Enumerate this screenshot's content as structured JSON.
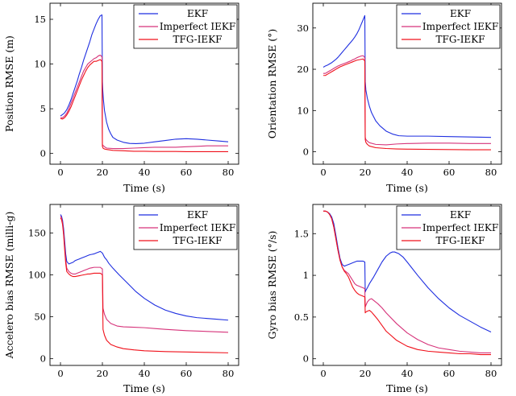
{
  "series_colors": {
    "EKF": "#1f2fe0",
    "Imperfect IEKF": "#d6337a",
    "TFG-IEKF": "#f0101a"
  },
  "chart_data": [
    {
      "type": "line",
      "id": "position",
      "xlabel": "Time (s)",
      "ylabel": "Position RMSE (m)",
      "xlim": [
        -5,
        85
      ],
      "ylim": [
        -1.2,
        16.8
      ],
      "xticks": [
        0,
        20,
        40,
        60,
        80
      ],
      "yticks": [
        0,
        5,
        10,
        15
      ],
      "legend": [
        "EKF",
        "Imperfect IEKF",
        "TFG-IEKF"
      ],
      "legend_position": "top-right",
      "series": [
        {
          "name": "EKF",
          "x": [
            0,
            1,
            2,
            3,
            4,
            5,
            6,
            7,
            8,
            9,
            10,
            11,
            12,
            13,
            14,
            15,
            16,
            17,
            18,
            19,
            19.8,
            20,
            20.2,
            20.5,
            21,
            22,
            23,
            24,
            25,
            27,
            30,
            33,
            36,
            40,
            45,
            50,
            55,
            60,
            65,
            70,
            75,
            80
          ],
          "y": [
            4.2,
            4.35,
            4.55,
            4.9,
            5.4,
            6.0,
            6.7,
            7.4,
            8.1,
            8.9,
            9.6,
            10.4,
            11.1,
            11.8,
            12.5,
            13.3,
            13.9,
            14.5,
            15.0,
            15.4,
            15.5,
            8.0,
            7.0,
            6.0,
            4.8,
            3.5,
            2.7,
            2.2,
            1.8,
            1.5,
            1.25,
            1.12,
            1.1,
            1.15,
            1.3,
            1.45,
            1.6,
            1.65,
            1.6,
            1.5,
            1.4,
            1.3
          ]
        },
        {
          "name": "Imperfect IEKF",
          "x": [
            0,
            1,
            2,
            3,
            4,
            5,
            6,
            7,
            8,
            9,
            10,
            11,
            12,
            13,
            14,
            15,
            16,
            17,
            18,
            19,
            19.8,
            20,
            20.3,
            21,
            22,
            25,
            30,
            35,
            40,
            45,
            50,
            55,
            60,
            65,
            70,
            75,
            80
          ],
          "y": [
            4.0,
            4.0,
            4.2,
            4.5,
            5.0,
            5.6,
            6.2,
            6.8,
            7.4,
            8.0,
            8.6,
            9.2,
            9.6,
            10.0,
            10.2,
            10.4,
            10.6,
            10.7,
            10.9,
            11.0,
            10.8,
            1.0,
            0.9,
            0.75,
            0.6,
            0.55,
            0.55,
            0.6,
            0.65,
            0.7,
            0.7,
            0.7,
            0.75,
            0.8,
            0.85,
            0.85,
            0.85
          ]
        },
        {
          "name": "TFG-IEKF",
          "x": [
            0,
            1,
            2,
            3,
            4,
            5,
            6,
            7,
            8,
            9,
            10,
            11,
            12,
            13,
            14,
            15,
            16,
            17,
            18,
            19,
            19.8,
            20,
            20.3,
            21,
            22,
            25,
            30,
            35,
            40,
            45,
            50,
            55,
            60,
            65,
            70,
            75,
            80
          ],
          "y": [
            3.9,
            3.85,
            4.0,
            4.3,
            4.7,
            5.2,
            5.8,
            6.4,
            7.0,
            7.6,
            8.2,
            8.7,
            9.2,
            9.6,
            9.9,
            10.1,
            10.3,
            10.3,
            10.4,
            10.5,
            10.3,
            0.8,
            0.6,
            0.5,
            0.45,
            0.35,
            0.3,
            0.25,
            0.25,
            0.22,
            0.22,
            0.22,
            0.2,
            0.2,
            0.2,
            0.2,
            0.2
          ]
        }
      ]
    },
    {
      "type": "line",
      "id": "orientation",
      "xlabel": "Time (s)",
      "ylabel": "Orientation RMSE (°)",
      "xlim": [
        -5,
        85
      ],
      "ylim": [
        -3,
        36
      ],
      "xticks": [
        0,
        20,
        40,
        60,
        80
      ],
      "yticks": [
        0,
        10,
        20,
        30
      ],
      "legend": [
        "EKF",
        "Imperfect IEKF",
        "TFG-IEKF"
      ],
      "legend_position": "top-right",
      "series": [
        {
          "name": "EKF",
          "x": [
            0,
            1,
            2,
            3,
            4,
            5,
            6,
            7,
            8,
            9,
            10,
            11,
            12,
            13,
            14,
            15,
            16,
            17,
            18,
            19,
            19.8,
            20,
            20.3,
            21,
            22,
            23,
            24,
            25,
            27,
            30,
            33,
            36,
            40,
            45,
            50,
            60,
            70,
            80
          ],
          "y": [
            20.5,
            20.8,
            21.0,
            21.3,
            21.6,
            22.0,
            22.4,
            22.9,
            23.5,
            24.1,
            24.7,
            25.3,
            25.9,
            26.5,
            27.1,
            27.8,
            28.6,
            29.6,
            30.8,
            32.0,
            33.0,
            17.0,
            15.0,
            13.0,
            11.0,
            9.5,
            8.5,
            7.5,
            6.3,
            5.0,
            4.3,
            3.9,
            3.8,
            3.8,
            3.8,
            3.7,
            3.6,
            3.5
          ]
        },
        {
          "name": "Imperfect IEKF",
          "x": [
            0,
            1,
            2,
            3,
            4,
            5,
            6,
            7,
            8,
            9,
            10,
            11,
            12,
            13,
            14,
            15,
            16,
            17,
            18,
            19,
            19.8,
            20,
            20.3,
            21,
            22,
            25,
            30,
            35,
            40,
            50,
            60,
            70,
            80
          ],
          "y": [
            19.0,
            19.0,
            19.3,
            19.6,
            19.9,
            20.2,
            20.5,
            20.8,
            21.0,
            21.2,
            21.4,
            21.6,
            21.8,
            22.0,
            22.3,
            22.5,
            22.8,
            23.0,
            23.2,
            23.3,
            22.8,
            3.5,
            3.0,
            2.6,
            2.2,
            1.8,
            1.7,
            1.9,
            2.0,
            2.1,
            2.1,
            2.0,
            2.0
          ]
        },
        {
          "name": "TFG-IEKF",
          "x": [
            0,
            1,
            2,
            3,
            4,
            5,
            6,
            7,
            8,
            9,
            10,
            11,
            12,
            13,
            14,
            15,
            16,
            17,
            18,
            19,
            19.8,
            20,
            20.3,
            21,
            22,
            25,
            30,
            35,
            40,
            50,
            60,
            70,
            80
          ],
          "y": [
            18.5,
            18.5,
            18.8,
            19.1,
            19.4,
            19.7,
            20.0,
            20.3,
            20.6,
            20.8,
            21.0,
            21.2,
            21.4,
            21.6,
            21.8,
            22.0,
            22.2,
            22.3,
            22.4,
            22.5,
            22.0,
            3.0,
            2.3,
            1.8,
            1.4,
            1.0,
            0.8,
            0.7,
            0.65,
            0.6,
            0.55,
            0.5,
            0.5
          ]
        }
      ]
    },
    {
      "type": "line",
      "id": "accelero_bias",
      "xlabel": "Time (s)",
      "ylabel": "Accelero bias RMSE (milli-g)",
      "xlim": [
        -5,
        85
      ],
      "ylim": [
        -8,
        184
      ],
      "xticks": [
        0,
        20,
        40,
        60,
        80
      ],
      "yticks": [
        0,
        50,
        100,
        150
      ],
      "legend": [
        "EKF",
        "Imperfect IEKF",
        "TFG-IEKF"
      ],
      "legend_position": "top-right",
      "series": [
        {
          "name": "EKF",
          "x": [
            0,
            0.5,
            1,
            1.5,
            2,
            2.5,
            3,
            4,
            5,
            6,
            7,
            8,
            9,
            10,
            11,
            12,
            13,
            14,
            15,
            16,
            17,
            18,
            19,
            19.5,
            20,
            21,
            22,
            23,
            25,
            28,
            32,
            36,
            40,
            45,
            50,
            55,
            60,
            65,
            70,
            75,
            80
          ],
          "y": [
            172,
            170,
            165,
            155,
            140,
            125,
            116,
            113,
            114,
            115,
            117,
            118,
            119,
            120,
            121,
            122,
            123,
            124,
            124.5,
            125,
            126,
            127,
            128,
            127,
            126,
            121,
            118,
            114,
            108,
            100,
            90,
            80,
            72,
            64,
            58,
            54,
            51,
            49,
            48,
            47,
            46
          ]
        },
        {
          "name": "Imperfect IEKF",
          "x": [
            0,
            0.5,
            1,
            1.5,
            2,
            2.5,
            3,
            4,
            5,
            6,
            7,
            8,
            9,
            10,
            11,
            12,
            13,
            14,
            15,
            16,
            17,
            18,
            19,
            19.5,
            20,
            20.3,
            21,
            22,
            24,
            27,
            30,
            35,
            40,
            45,
            50,
            60,
            70,
            80
          ],
          "y": [
            170,
            168,
            162,
            150,
            134,
            118,
            108,
            104,
            102,
            101,
            101,
            102,
            103,
            104,
            105,
            106,
            107,
            108,
            108.5,
            109,
            109,
            109,
            109,
            108,
            107,
            60,
            53,
            47,
            42,
            39,
            38,
            37.5,
            37,
            36,
            35,
            33.5,
            32.5,
            31.5
          ]
        },
        {
          "name": "TFG-IEKF",
          "x": [
            0,
            0.5,
            1,
            1.5,
            2,
            2.5,
            3,
            4,
            5,
            6,
            7,
            8,
            9,
            10,
            11,
            12,
            13,
            14,
            15,
            16,
            17,
            18,
            19,
            19.5,
            20,
            20.3,
            21,
            22,
            24,
            27,
            30,
            35,
            40,
            45,
            50,
            60,
            70,
            80
          ],
          "y": [
            168,
            166,
            160,
            148,
            130,
            114,
            104,
            101,
            99,
            98,
            98,
            98.5,
            99,
            99.5,
            100,
            100.5,
            101,
            101,
            101.5,
            102,
            102,
            102,
            102,
            101,
            100,
            35,
            28,
            22,
            17,
            14,
            12,
            10.5,
            9.5,
            9,
            8.5,
            8,
            7.5,
            7
          ]
        }
      ]
    },
    {
      "type": "line",
      "id": "gyro_bias",
      "xlabel": "Time (s)",
      "ylabel": "Gyro bias RMSE (°/s)",
      "xlim": [
        -5,
        85
      ],
      "ylim": [
        -0.08,
        1.85
      ],
      "xticks": [
        0,
        20,
        40,
        60,
        80
      ],
      "yticks": [
        0,
        0.5,
        1,
        1.5
      ],
      "legend": [
        "EKF",
        "Imperfect IEKF",
        "TFG-IEKF"
      ],
      "legend_position": "top-right",
      "series": [
        {
          "name": "EKF",
          "x": [
            0,
            1,
            2,
            3,
            4,
            5,
            6,
            7,
            8,
            9,
            10,
            11,
            12,
            13,
            14,
            15,
            16,
            17,
            18,
            19,
            19.8,
            20,
            20.3,
            21,
            22,
            24,
            26,
            28,
            30,
            32,
            33,
            34,
            36,
            38,
            40,
            45,
            50,
            55,
            60,
            65,
            70,
            75,
            80
          ],
          "y": [
            1.77,
            1.77,
            1.76,
            1.74,
            1.7,
            1.62,
            1.48,
            1.33,
            1.2,
            1.13,
            1.11,
            1.12,
            1.13,
            1.14,
            1.15,
            1.16,
            1.17,
            1.17,
            1.17,
            1.17,
            1.16,
            0.8,
            0.82,
            0.85,
            0.9,
            0.98,
            1.07,
            1.16,
            1.23,
            1.27,
            1.28,
            1.28,
            1.26,
            1.22,
            1.16,
            1.0,
            0.85,
            0.72,
            0.61,
            0.52,
            0.45,
            0.38,
            0.32
          ]
        },
        {
          "name": "Imperfect IEKF",
          "x": [
            0,
            1,
            2,
            3,
            4,
            5,
            6,
            7,
            8,
            9,
            10,
            11,
            12,
            13,
            14,
            15,
            16,
            17,
            18,
            19,
            19.8,
            20,
            20.3,
            21,
            22,
            23,
            24,
            26,
            28,
            30,
            35,
            40,
            45,
            50,
            55,
            60,
            65,
            70,
            75,
            80
          ],
          "y": [
            1.77,
            1.77,
            1.76,
            1.73,
            1.68,
            1.58,
            1.44,
            1.3,
            1.18,
            1.1,
            1.06,
            1.04,
            1.02,
            0.98,
            0.94,
            0.9,
            0.88,
            0.87,
            0.86,
            0.85,
            0.84,
            0.62,
            0.64,
            0.68,
            0.71,
            0.72,
            0.7,
            0.66,
            0.61,
            0.55,
            0.42,
            0.31,
            0.23,
            0.17,
            0.13,
            0.11,
            0.09,
            0.08,
            0.07,
            0.07
          ]
        },
        {
          "name": "TFG-IEKF",
          "x": [
            0,
            1,
            2,
            3,
            4,
            5,
            6,
            7,
            8,
            9,
            10,
            11,
            12,
            13,
            14,
            15,
            16,
            17,
            18,
            19,
            19.8,
            20,
            20.3,
            21,
            22,
            23,
            24,
            26,
            28,
            30,
            35,
            40,
            45,
            50,
            55,
            60,
            65,
            70,
            75,
            80
          ],
          "y": [
            1.77,
            1.77,
            1.76,
            1.73,
            1.68,
            1.58,
            1.44,
            1.3,
            1.18,
            1.1,
            1.05,
            1.02,
            0.98,
            0.92,
            0.86,
            0.82,
            0.79,
            0.77,
            0.76,
            0.75,
            0.74,
            0.55,
            0.56,
            0.57,
            0.58,
            0.56,
            0.53,
            0.47,
            0.4,
            0.33,
            0.22,
            0.15,
            0.11,
            0.09,
            0.08,
            0.07,
            0.06,
            0.06,
            0.05,
            0.05
          ]
        }
      ]
    }
  ]
}
